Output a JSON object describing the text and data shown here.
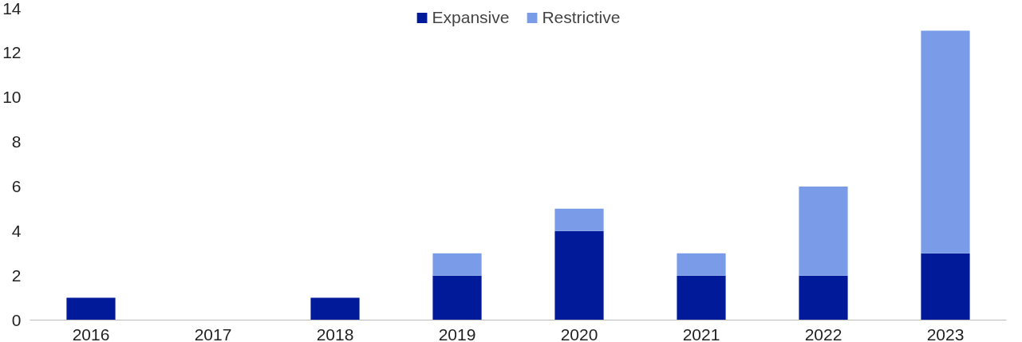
{
  "chart_data": {
    "type": "bar",
    "stacked": true,
    "categories": [
      "2016",
      "2017",
      "2018",
      "2019",
      "2020",
      "2021",
      "2022",
      "2023"
    ],
    "series": [
      {
        "name": "Expansive",
        "color": "#001a9a",
        "values": [
          1,
          0,
          1,
          2,
          4,
          2,
          2,
          3
        ]
      },
      {
        "name": "Restrictive",
        "color": "#7a9ce8",
        "values": [
          0,
          0,
          0,
          1,
          1,
          1,
          4,
          10
        ]
      }
    ],
    "ylim": [
      0,
      14
    ],
    "yticks": [
      0,
      2,
      4,
      6,
      8,
      10,
      12,
      14
    ],
    "grid": false,
    "legend": "top"
  }
}
